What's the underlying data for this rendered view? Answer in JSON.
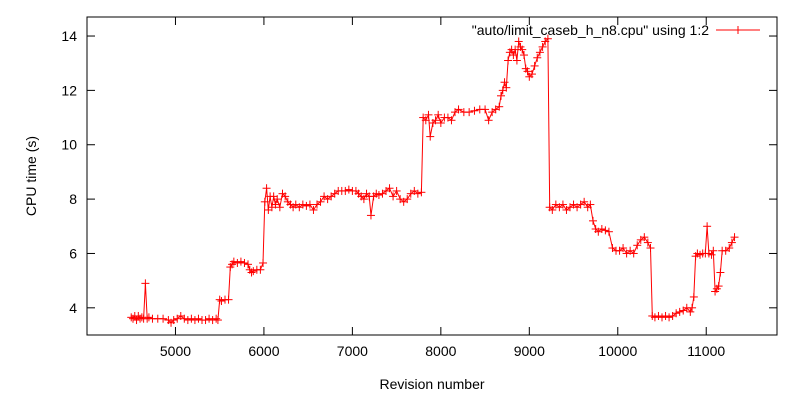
{
  "chart_data": {
    "type": "line",
    "title": "",
    "xlabel": "Revision number",
    "ylabel": "CPU time (s)",
    "xlim": [
      4000,
      11800
    ],
    "ylim": [
      3,
      14.7
    ],
    "xticks": [
      5000,
      6000,
      7000,
      8000,
      9000,
      10000,
      11000
    ],
    "yticks": [
      4,
      6,
      8,
      10,
      12,
      14
    ],
    "grid": false,
    "legend_position": "top-right",
    "series": [
      {
        "name": "\"auto/limit_caseb_h_n8.cpu\" using 1:2",
        "color": "#ff0000",
        "marker": "plus",
        "points": [
          [
            4500,
            3.65
          ],
          [
            4520,
            3.6
          ],
          [
            4540,
            3.7
          ],
          [
            4560,
            3.55
          ],
          [
            4580,
            3.7
          ],
          [
            4600,
            3.6
          ],
          [
            4620,
            3.65
          ],
          [
            4640,
            3.6
          ],
          [
            4660,
            4.9
          ],
          [
            4680,
            3.6
          ],
          [
            4700,
            3.65
          ],
          [
            4740,
            3.6
          ],
          [
            4800,
            3.6
          ],
          [
            4860,
            3.6
          ],
          [
            4920,
            3.55
          ],
          [
            4950,
            3.45
          ],
          [
            4980,
            3.55
          ],
          [
            5020,
            3.6
          ],
          [
            5060,
            3.7
          ],
          [
            5100,
            3.6
          ],
          [
            5140,
            3.55
          ],
          [
            5180,
            3.6
          ],
          [
            5220,
            3.55
          ],
          [
            5260,
            3.6
          ],
          [
            5300,
            3.55
          ],
          [
            5340,
            3.55
          ],
          [
            5380,
            3.6
          ],
          [
            5420,
            3.55
          ],
          [
            5460,
            3.6
          ],
          [
            5480,
            3.55
          ],
          [
            5500,
            4.3
          ],
          [
            5520,
            4.25
          ],
          [
            5560,
            4.3
          ],
          [
            5600,
            4.3
          ],
          [
            5620,
            5.5
          ],
          [
            5640,
            5.6
          ],
          [
            5660,
            5.7
          ],
          [
            5700,
            5.65
          ],
          [
            5740,
            5.7
          ],
          [
            5780,
            5.65
          ],
          [
            5820,
            5.6
          ],
          [
            5840,
            5.4
          ],
          [
            5860,
            5.3
          ],
          [
            5880,
            5.35
          ],
          [
            5920,
            5.4
          ],
          [
            5960,
            5.4
          ],
          [
            5990,
            5.65
          ],
          [
            6010,
            7.9
          ],
          [
            6030,
            8.4
          ],
          [
            6050,
            7.6
          ],
          [
            6070,
            8.1
          ],
          [
            6090,
            7.7
          ],
          [
            6110,
            8.1
          ],
          [
            6130,
            7.8
          ],
          [
            6150,
            8.0
          ],
          [
            6180,
            7.7
          ],
          [
            6210,
            8.2
          ],
          [
            6240,
            8.1
          ],
          [
            6270,
            7.9
          ],
          [
            6300,
            7.8
          ],
          [
            6330,
            7.7
          ],
          [
            6360,
            7.8
          ],
          [
            6400,
            7.7
          ],
          [
            6440,
            7.8
          ],
          [
            6480,
            7.75
          ],
          [
            6520,
            7.8
          ],
          [
            6560,
            7.6
          ],
          [
            6600,
            7.8
          ],
          [
            6640,
            7.9
          ],
          [
            6680,
            8.1
          ],
          [
            6720,
            8.0
          ],
          [
            6760,
            8.1
          ],
          [
            6800,
            8.2
          ],
          [
            6840,
            8.3
          ],
          [
            6880,
            8.3
          ],
          [
            6920,
            8.3
          ],
          [
            6960,
            8.35
          ],
          [
            7000,
            8.3
          ],
          [
            7040,
            8.3
          ],
          [
            7070,
            8.2
          ],
          [
            7100,
            8.1
          ],
          [
            7130,
            8.0
          ],
          [
            7160,
            8.2
          ],
          [
            7190,
            8.1
          ],
          [
            7210,
            7.4
          ],
          [
            7240,
            8.1
          ],
          [
            7270,
            8.2
          ],
          [
            7300,
            8.15
          ],
          [
            7340,
            8.2
          ],
          [
            7380,
            8.3
          ],
          [
            7420,
            8.4
          ],
          [
            7460,
            8.1
          ],
          [
            7500,
            8.3
          ],
          [
            7540,
            8.0
          ],
          [
            7580,
            7.9
          ],
          [
            7620,
            8.0
          ],
          [
            7660,
            8.2
          ],
          [
            7700,
            8.3
          ],
          [
            7740,
            8.2
          ],
          [
            7780,
            8.25
          ],
          [
            7800,
            11.0
          ],
          [
            7830,
            10.9
          ],
          [
            7860,
            11.1
          ],
          [
            7880,
            10.3
          ],
          [
            7910,
            10.8
          ],
          [
            7940,
            10.9
          ],
          [
            7970,
            11.1
          ],
          [
            8000,
            10.8
          ],
          [
            8040,
            11.0
          ],
          [
            8080,
            11.0
          ],
          [
            8120,
            10.9
          ],
          [
            8160,
            11.2
          ],
          [
            8200,
            11.3
          ],
          [
            8260,
            11.2
          ],
          [
            8320,
            11.2
          ],
          [
            8380,
            11.25
          ],
          [
            8440,
            11.3
          ],
          [
            8500,
            11.3
          ],
          [
            8540,
            10.9
          ],
          [
            8580,
            11.2
          ],
          [
            8620,
            11.3
          ],
          [
            8660,
            11.4
          ],
          [
            8680,
            11.8
          ],
          [
            8700,
            12.0
          ],
          [
            8720,
            12.3
          ],
          [
            8740,
            12.1
          ],
          [
            8760,
            13.1
          ],
          [
            8780,
            13.4
          ],
          [
            8800,
            13.5
          ],
          [
            8820,
            13.3
          ],
          [
            8840,
            13.5
          ],
          [
            8860,
            13.1
          ],
          [
            8880,
            13.8
          ],
          [
            8900,
            13.6
          ],
          [
            8920,
            13.5
          ],
          [
            8940,
            13.3
          ],
          [
            8960,
            12.8
          ],
          [
            8980,
            12.7
          ],
          [
            9000,
            12.5
          ],
          [
            9030,
            12.6
          ],
          [
            9060,
            12.9
          ],
          [
            9090,
            13.2
          ],
          [
            9120,
            13.4
          ],
          [
            9150,
            13.6
          ],
          [
            9180,
            13.8
          ],
          [
            9210,
            13.9
          ],
          [
            9230,
            7.7
          ],
          [
            9260,
            7.6
          ],
          [
            9300,
            7.8
          ],
          [
            9340,
            7.7
          ],
          [
            9380,
            7.8
          ],
          [
            9420,
            7.6
          ],
          [
            9460,
            7.7
          ],
          [
            9500,
            7.8
          ],
          [
            9540,
            7.7
          ],
          [
            9580,
            7.8
          ],
          [
            9620,
            7.9
          ],
          [
            9660,
            7.7
          ],
          [
            9690,
            7.8
          ],
          [
            9720,
            7.2
          ],
          [
            9750,
            6.9
          ],
          [
            9780,
            6.8
          ],
          [
            9820,
            6.9
          ],
          [
            9860,
            6.85
          ],
          [
            9900,
            6.8
          ],
          [
            9940,
            6.2
          ],
          [
            9980,
            6.1
          ],
          [
            10020,
            6.1
          ],
          [
            10060,
            6.2
          ],
          [
            10100,
            6.0
          ],
          [
            10140,
            6.1
          ],
          [
            10180,
            6.0
          ],
          [
            10220,
            6.3
          ],
          [
            10260,
            6.5
          ],
          [
            10300,
            6.6
          ],
          [
            10340,
            6.4
          ],
          [
            10370,
            6.2
          ],
          [
            10390,
            3.7
          ],
          [
            10420,
            3.65
          ],
          [
            10460,
            3.7
          ],
          [
            10500,
            3.65
          ],
          [
            10540,
            3.7
          ],
          [
            10580,
            3.65
          ],
          [
            10620,
            3.7
          ],
          [
            10660,
            3.8
          ],
          [
            10700,
            3.85
          ],
          [
            10740,
            3.9
          ],
          [
            10780,
            4.0
          ],
          [
            10820,
            3.85
          ],
          [
            10840,
            4.0
          ],
          [
            10860,
            4.4
          ],
          [
            10880,
            5.9
          ],
          [
            10900,
            6.0
          ],
          [
            10930,
            5.95
          ],
          [
            10960,
            6.0
          ],
          [
            10990,
            6.0
          ],
          [
            11010,
            7.0
          ],
          [
            11030,
            6.0
          ],
          [
            11060,
            5.95
          ],
          [
            11080,
            6.1
          ],
          [
            11100,
            4.6
          ],
          [
            11120,
            4.7
          ],
          [
            11140,
            4.8
          ],
          [
            11160,
            5.3
          ],
          [
            11180,
            6.1
          ],
          [
            11220,
            6.1
          ],
          [
            11260,
            6.2
          ],
          [
            11290,
            6.4
          ],
          [
            11320,
            6.6
          ]
        ]
      }
    ]
  }
}
